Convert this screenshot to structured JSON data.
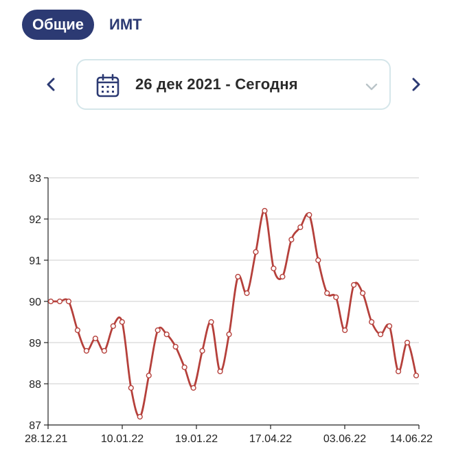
{
  "tabs": [
    {
      "label": "Общие",
      "active": true
    },
    {
      "label": "ИМТ",
      "active": false
    }
  ],
  "date_range": {
    "label": "26 дек 2021 - Сегодня",
    "prev_icon": "chevron-left-icon",
    "next_icon": "chevron-right-icon",
    "calendar_icon": "calendar-icon",
    "dropdown_icon": "chevron-down-icon"
  },
  "colors": {
    "accent": "#2c3a73",
    "line": "#b5403b",
    "grid": "#cccccc",
    "date_box_border": "#d5e6ea"
  },
  "chart_data": {
    "type": "line",
    "title": "",
    "xlabel": "",
    "ylabel": "",
    "ylim": [
      87,
      93
    ],
    "yticks": [
      87,
      88,
      89,
      90,
      91,
      92,
      93
    ],
    "xtick_labels": [
      "28.12.21",
      "10.01.22",
      "19.01.22",
      "17.04.22",
      "03.06.22",
      "14.06.22"
    ],
    "grid": "horizontal",
    "series": [
      {
        "values": [
          90.0,
          90.0,
          90.0,
          89.3,
          88.8,
          89.1,
          88.8,
          89.4,
          89.5,
          87.9,
          87.2,
          88.2,
          89.3,
          89.2,
          88.9,
          88.4,
          87.9,
          88.8,
          89.5,
          88.3,
          89.2,
          90.6,
          90.2,
          91.2,
          92.2,
          90.8,
          90.6,
          91.5,
          91.8,
          92.1,
          91.0,
          90.2,
          90.1,
          89.3,
          90.4,
          90.2,
          89.5,
          89.2,
          89.4,
          88.3,
          89.0,
          88.2
        ]
      }
    ]
  }
}
